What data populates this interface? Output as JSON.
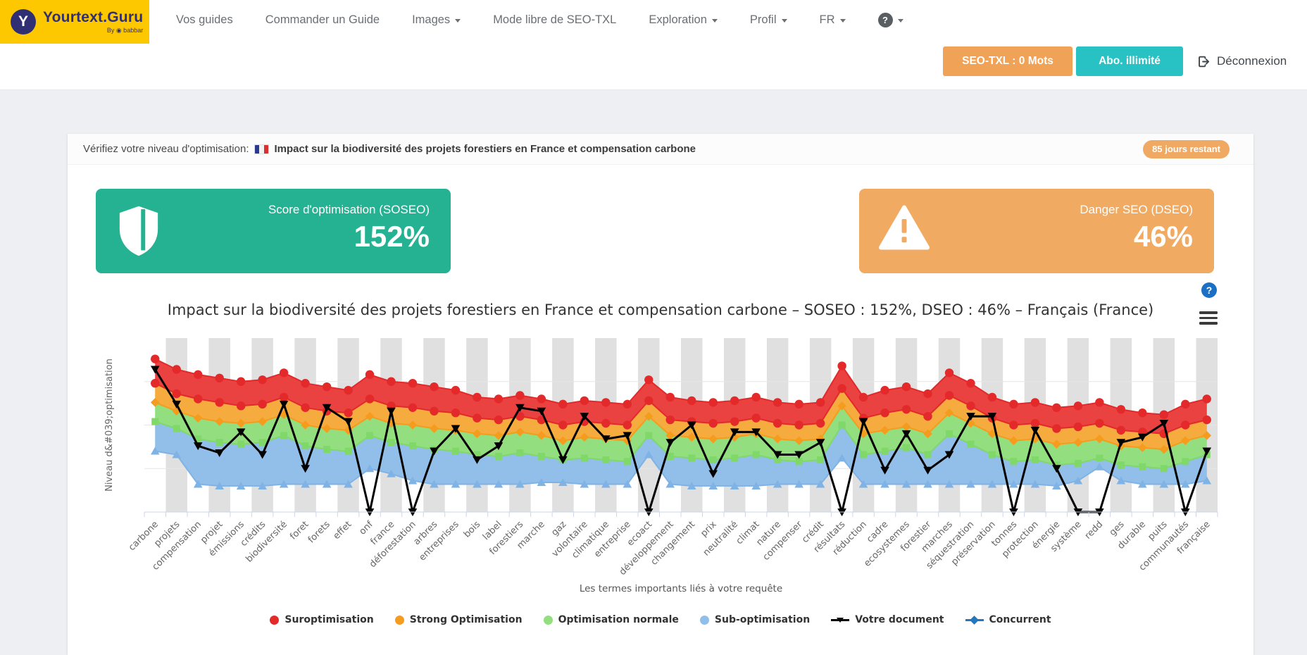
{
  "nav": {
    "brand": {
      "icon_letter": "Y",
      "name": "Yourtext.Guru",
      "byline": "By ◉ babbar"
    },
    "items": [
      {
        "label": "Vos guides",
        "caret": false
      },
      {
        "label": "Commander un Guide",
        "caret": false
      },
      {
        "label": "Images",
        "caret": true
      },
      {
        "label": "Mode libre de SEO-TXL",
        "caret": false
      },
      {
        "label": "Exploration",
        "caret": true
      },
      {
        "label": "Profil",
        "caret": true
      },
      {
        "label": "FR",
        "caret": true
      },
      {
        "label": "",
        "caret": true,
        "icon": "help-circle",
        "glyph": "?"
      }
    ],
    "buttons": {
      "words": "SEO-TXL : 0 Mots",
      "subscription": "Abo. illimité",
      "logout": "Déconnexion"
    }
  },
  "page": {
    "check_prefix": "Vérifiez votre niveau d'optimisation:",
    "query_title": "Impact sur la biodiversité des projets forestiers en France et compensation carbone",
    "days_badge": "85 jours restant",
    "help_glyph": "?"
  },
  "scores": {
    "soseo": {
      "label": "Score d'optimisation (SOSEO)",
      "value": "152%",
      "color": "#24b293"
    },
    "dseo": {
      "label": "Danger SEO (DSEO)",
      "value": "46%",
      "color": "#f0aa62"
    }
  },
  "chart_data": {
    "type": "area",
    "subtype": "stacked-range-bands-with-line",
    "title": "Impact sur la biodiversité des projets forestiers en France et compensation carbone – SOSEO : 152%, DSEO : 46% – Français (France)",
    "ylabel": "Niveau d&#039;optimisation",
    "xlabel": "Les termes importants liés à votre requête",
    "ylim": [
      0,
      100
    ],
    "grid_values": [
      25,
      50,
      75
    ],
    "plotband_color": "#e0e0e0",
    "axis_color": "#ccd6eb",
    "label_color": "#666666",
    "categories": [
      "carbone",
      "projets",
      "compensation",
      "projet",
      "émissions",
      "crédits",
      "biodiversité",
      "foret",
      "forets",
      "effet",
      "onf",
      "france",
      "déforestation",
      "arbres",
      "entreprises",
      "bois",
      "label",
      "forestiers",
      "marche",
      "gaz",
      "volontaire",
      "climatique",
      "entreprise",
      "ecoact",
      "développement",
      "changement",
      "prix",
      "neutralité",
      "climat",
      "nature",
      "compenser",
      "crédit",
      "résultats",
      "réduction",
      "cadre",
      "ecosystemes",
      "forestier",
      "marches",
      "séquestration",
      "préservation",
      "tonnes",
      "protection",
      "énergie",
      "système",
      "redd",
      "ges",
      "durable",
      "puits",
      "communautés",
      "française"
    ],
    "bands": {
      "red_top": [
        88,
        82,
        79,
        77,
        75,
        76,
        80,
        74,
        72,
        70,
        79,
        75,
        74,
        72,
        70,
        66,
        65,
        67,
        65,
        62,
        64,
        63,
        62,
        76,
        66,
        64,
        63,
        64,
        66,
        63,
        62,
        63,
        84,
        66,
        70,
        72,
        68,
        80,
        74,
        66,
        62,
        63,
        60,
        61,
        63,
        59,
        57,
        56,
        62,
        65
      ],
      "orange_top": [
        74,
        68,
        65,
        63,
        61,
        62,
        66,
        60,
        58,
        57,
        65,
        61,
        60,
        58,
        57,
        54,
        53,
        55,
        53,
        50,
        52,
        51,
        50,
        64,
        53,
        52,
        51,
        52,
        54,
        51,
        50,
        51,
        71,
        54,
        57,
        59,
        55,
        67,
        61,
        54,
        50,
        51,
        48,
        49,
        51,
        47,
        46,
        45,
        50,
        53
      ],
      "green_top": [
        63,
        58,
        54,
        52,
        51,
        52,
        56,
        50,
        48,
        47,
        55,
        51,
        50,
        48,
        47,
        45,
        44,
        46,
        44,
        41,
        43,
        42,
        41,
        55,
        44,
        43,
        42,
        43,
        45,
        42,
        41,
        42,
        61,
        45,
        47,
        49,
        45,
        57,
        51,
        45,
        41,
        42,
        39,
        40,
        42,
        38,
        37,
        36,
        41,
        44
      ],
      "blue_top": [
        52,
        48,
        42,
        40,
        39,
        40,
        44,
        38,
        36,
        35,
        44,
        40,
        38,
        36,
        35,
        33,
        32,
        34,
        32,
        30,
        31,
        30,
        29,
        44,
        32,
        31,
        30,
        31,
        33,
        30,
        29,
        30,
        50,
        33,
        35,
        37,
        33,
        45,
        39,
        33,
        29,
        30,
        27,
        28,
        31,
        27,
        26,
        25,
        29,
        33
      ],
      "blue_bottom": [
        35,
        33,
        16,
        15,
        15,
        15,
        16,
        16,
        16,
        16,
        25,
        22,
        18,
        16,
        16,
        16,
        16,
        16,
        17,
        17,
        16,
        16,
        16,
        33,
        16,
        15,
        15,
        15,
        15,
        16,
        16,
        16,
        31,
        16,
        16,
        16,
        16,
        16,
        16,
        16,
        16,
        16,
        15,
        18,
        26,
        18,
        16,
        16,
        16,
        18
      ]
    },
    "series": [
      {
        "name": "Votre document",
        "color": "#000000",
        "marker": "triangle-down",
        "values": [
          82,
          62,
          38,
          34,
          46,
          33,
          62,
          25,
          60,
          52,
          0,
          58,
          0,
          35,
          48,
          30,
          38,
          60,
          58,
          30,
          55,
          42,
          44,
          0,
          40,
          50,
          22,
          46,
          46,
          33,
          33,
          40,
          0,
          52,
          24,
          45,
          24,
          33,
          55,
          55,
          0,
          47,
          25,
          0,
          0,
          40,
          43,
          51,
          0,
          35
        ]
      },
      {
        "name": "Concurrent",
        "color": "#1f78c1",
        "marker": "diamond",
        "values": null
      }
    ],
    "band_colors": {
      "red": "#ea4141",
      "orange": "#f6ab3e",
      "green": "#93df7f",
      "blue": "#92bfe9"
    },
    "marker_colors": {
      "red": "#e32929",
      "orange": "#f59b1e",
      "green": "#7fd868",
      "blue": "#7fb2e5"
    },
    "legend": [
      {
        "label": "Suroptimisation",
        "color": "#e32929",
        "marker": "circle"
      },
      {
        "label": "Strong Optimisation",
        "color": "#f59b1e",
        "marker": "circle"
      },
      {
        "label": "Optimisation normale",
        "color": "#93df7f",
        "marker": "circle"
      },
      {
        "label": "Sub-optimisation",
        "color": "#92bfe9",
        "marker": "circle"
      },
      {
        "label": "Votre document",
        "color": "#000000",
        "marker": "line-triangle"
      },
      {
        "label": "Concurrent",
        "color": "#1f78c1",
        "marker": "line-diamond"
      }
    ]
  }
}
